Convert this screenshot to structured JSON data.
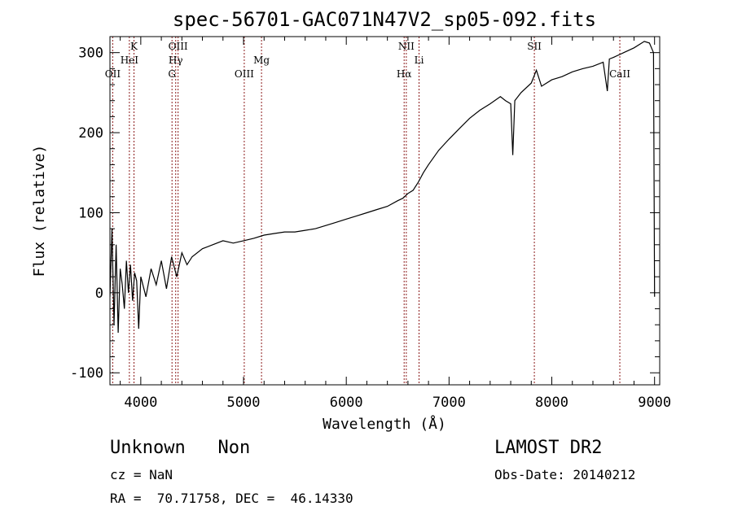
{
  "chart_data": {
    "type": "line",
    "title": "spec-56701-GAC071N47V2_sp05-092.fits",
    "xlabel": "Wavelength (Å)",
    "ylabel": "Flux (relative)",
    "xlim": [
      3700,
      9050
    ],
    "ylim": [
      -115,
      320
    ],
    "xticks": [
      4000,
      5000,
      6000,
      7000,
      8000,
      9000
    ],
    "yticks": [
      -100,
      0,
      100,
      200,
      300
    ],
    "series": [
      {
        "x": [
          3700,
          3720,
          3740,
          3760,
          3780,
          3800,
          3820,
          3840,
          3860,
          3880,
          3900,
          3920,
          3940,
          3960,
          3980,
          4000,
          4050,
          4100,
          4150,
          4200,
          4250,
          4300,
          4350,
          4400,
          4450,
          4500,
          4600,
          4700,
          4800,
          4900,
          5000,
          5100,
          5200,
          5300,
          5400,
          5500,
          5600,
          5700,
          5800,
          5900,
          6000,
          6100,
          6200,
          6300,
          6400,
          6500,
          6550,
          6600,
          6650,
          6700,
          6750,
          6800,
          6900,
          7000,
          7100,
          7200,
          7300,
          7400,
          7500,
          7550,
          7600,
          7620,
          7640,
          7700,
          7800,
          7850,
          7900,
          8000,
          8100,
          8200,
          8300,
          8400,
          8500,
          8540,
          8560,
          8600,
          8700,
          8800,
          8900,
          8950,
          8990,
          9000
        ],
        "y": [
          -5,
          80,
          -40,
          60,
          -50,
          30,
          10,
          -20,
          40,
          0,
          35,
          -10,
          25,
          15,
          -45,
          20,
          -5,
          30,
          10,
          40,
          5,
          45,
          20,
          50,
          35,
          45,
          55,
          60,
          65,
          62,
          65,
          68,
          72,
          74,
          76,
          76,
          78,
          80,
          84,
          88,
          92,
          96,
          100,
          104,
          108,
          115,
          118,
          124,
          128,
          138,
          150,
          160,
          178,
          192,
          205,
          218,
          228,
          236,
          245,
          240,
          236,
          172,
          240,
          250,
          262,
          278,
          258,
          266,
          270,
          276,
          280,
          283,
          288,
          252,
          292,
          294,
          300,
          306,
          314,
          312,
          300,
          -5
        ]
      }
    ],
    "spectral_lines": [
      {
        "label": "OII",
        "wavelength": 3727,
        "row": 3
      },
      {
        "label": "HeI",
        "wavelength": 3889,
        "row": 2
      },
      {
        "label": "K",
        "wavelength": 3934,
        "row": 1
      },
      {
        "label": "G",
        "wavelength": 4304,
        "row": 3
      },
      {
        "label": "Hγ",
        "wavelength": 4340,
        "row": 2
      },
      {
        "label": "OIII",
        "wavelength": 4363,
        "row": 1
      },
      {
        "label": "OIII",
        "wavelength": 5007,
        "row": 3
      },
      {
        "label": "Mg",
        "wavelength": 5175,
        "row": 2
      },
      {
        "label": "Hα",
        "wavelength": 6563,
        "row": 3
      },
      {
        "label": "NII",
        "wavelength": 6584,
        "row": 1
      },
      {
        "label": "Li",
        "wavelength": 6708,
        "row": 2
      },
      {
        "label": "SII",
        "wavelength": 7830,
        "row": 1
      },
      {
        "label": "CaII",
        "wavelength": 8662,
        "row": 3
      }
    ],
    "line_marker_color": "#8b1a1a",
    "grid": false,
    "legend": "none"
  },
  "info": {
    "class_text": "Unknown   Non",
    "survey_text": "LAMOST DR2",
    "cz_text": "cz = NaN",
    "obs_date_text": "Obs-Date: 20140212",
    "coords_text": "RA =  70.71758, DEC =  46.14330"
  }
}
